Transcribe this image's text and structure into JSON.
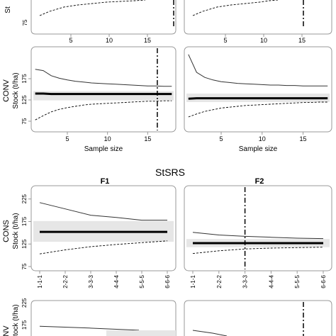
{
  "section_title": "StSRS",
  "panels_top_partial": [
    {
      "row": "CONS",
      "col": "F1",
      "x_ticks": [
        "5",
        "10",
        "15"
      ],
      "y_ticks": [
        "75"
      ]
    },
    {
      "row": "CONS",
      "col": "F2",
      "x_ticks": [
        "5",
        "10",
        "15"
      ]
    }
  ],
  "row_labels": {
    "conv": "CONV",
    "cons": "CONS",
    "conv_partial": "NV"
  },
  "ylabel": "Stock (t/ha)",
  "xlabel": "Sample size",
  "col_labels": [
    "F1",
    "F2"
  ],
  "chart_data": [
    {
      "id": "conv-f1",
      "type": "line",
      "x": [
        1,
        2,
        3,
        4,
        5,
        6,
        7,
        8,
        9,
        10,
        11,
        12,
        13,
        14,
        15,
        16,
        17,
        18
      ],
      "series": [
        {
          "style": "upper",
          "values": [
            197,
            194,
            182,
            176,
            172,
            169,
            167,
            165,
            164,
            163,
            162,
            161,
            160,
            159,
            158,
            158,
            157,
            157
          ]
        },
        {
          "style": "mean",
          "values": [
            140,
            140,
            139,
            139,
            139,
            139,
            139,
            139,
            139,
            139,
            139,
            139,
            139,
            139,
            139,
            139,
            139,
            139
          ]
        },
        {
          "style": "lower",
          "values": [
            78,
            88,
            97,
            103,
            107,
            110,
            113,
            115,
            116,
            117,
            118,
            119,
            120,
            121,
            122,
            122,
            123,
            123
          ]
        }
      ],
      "band": [
        124,
        146
      ],
      "vline_x": 16.2,
      "xlim": [
        0.5,
        18.5
      ],
      "ylim": [
        60,
        240
      ],
      "x_ticks": [
        "5",
        "10",
        "15"
      ],
      "y_ticks": [
        "75",
        "125",
        "175"
      ]
    },
    {
      "id": "conv-f2",
      "type": "line",
      "x": [
        1,
        2,
        3,
        4,
        5,
        6,
        7,
        8,
        9,
        10,
        11,
        12,
        13,
        14,
        15,
        16,
        17,
        18
      ],
      "series": [
        {
          "style": "upper",
          "values": [
            232,
            190,
            178,
            172,
            168,
            166,
            164,
            163,
            162,
            161,
            160,
            160,
            159,
            159,
            158,
            158,
            158,
            158
          ]
        },
        {
          "style": "mean",
          "values": [
            128,
            129,
            129,
            129,
            129,
            129,
            129,
            129,
            129,
            129,
            129,
            129,
            129,
            129,
            129,
            129,
            129,
            129
          ]
        },
        {
          "style": "lower",
          "values": [
            85,
            92,
            98,
            102,
            106,
            108,
            110,
            112,
            113,
            114,
            115,
            116,
            117,
            118,
            119,
            119,
            120,
            120
          ]
        }
      ],
      "band": [
        120,
        140
      ],
      "vline_x": null,
      "xlim": [
        0.5,
        18.5
      ],
      "ylim": [
        60,
        240
      ],
      "x_ticks": [
        "5",
        "10",
        "15"
      ],
      "y_ticks": []
    },
    {
      "id": "cons-f1-stsrs",
      "type": "line",
      "categories": [
        "1-1-1",
        "2-2-2",
        "3-3-3",
        "4-4-4",
        "5-5-5",
        "6-6-6"
      ],
      "series": [
        {
          "style": "upper",
          "values": [
            217,
            203,
            189,
            184,
            178,
            178
          ]
        },
        {
          "style": "mean",
          "values": [
            152,
            152,
            152,
            152,
            152,
            152
          ]
        },
        {
          "style": "lower",
          "values": [
            103,
            112,
            119,
            124,
            128,
            132
          ]
        }
      ],
      "band": [
        130,
        176
      ],
      "vline_x": null,
      "xlim": [
        1,
        6
      ],
      "ylim": [
        75,
        245
      ],
      "y_ticks": [
        "75",
        "125",
        "175",
        "225"
      ]
    },
    {
      "id": "cons-f2-stsrs",
      "type": "line",
      "categories": [
        "1-1-1",
        "2-2-2",
        "3-3-3",
        "4-4-4",
        "5-5-5",
        "6-6-6"
      ],
      "series": [
        {
          "style": "upper",
          "values": [
            151,
            145,
            142,
            140,
            138,
            137
          ]
        },
        {
          "style": "mean",
          "values": [
            127,
            127,
            127,
            127,
            127,
            127
          ]
        },
        {
          "style": "lower",
          "values": [
            104,
            110,
            114,
            116,
            117,
            118
          ]
        }
      ],
      "band": [
        118,
        136
      ],
      "vline_x": 3,
      "xlim": [
        1,
        6
      ],
      "ylim": [
        75,
        245
      ],
      "y_ticks": []
    },
    {
      "id": "conv-f1-stsrs-partial",
      "type": "line",
      "series": [
        {
          "style": "upper",
          "values": [
            172,
            168,
            163
          ]
        }
      ],
      "y_ticks": [
        "225",
        "175"
      ]
    }
  ]
}
